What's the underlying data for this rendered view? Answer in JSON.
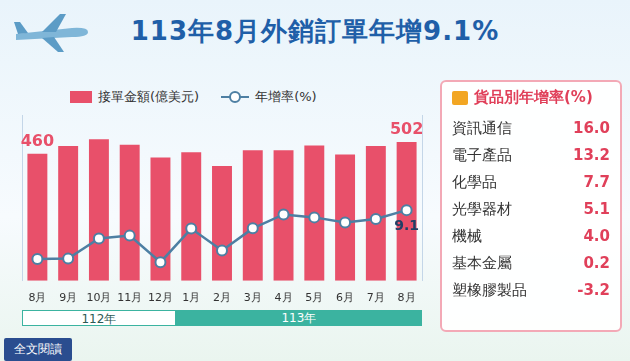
{
  "chart_data": {
    "type": "bar",
    "title": "113年8月外銷訂單年增9.1%",
    "categories": [
      "8月",
      "9月",
      "10月",
      "11月",
      "12月",
      "1月",
      "2月",
      "3月",
      "4月",
      "5月",
      "6月",
      "7月",
      "8月"
    ],
    "series": [
      {
        "name": "接單金額(億美元)",
        "type": "bar",
        "color": "#e8506a",
        "values": [
          460,
          488,
          512,
          492,
          446,
          465,
          415,
          472,
          472,
          490,
          457,
          488,
          502
        ],
        "value_labels": [
          "460",
          null,
          null,
          null,
          null,
          null,
          null,
          null,
          null,
          null,
          null,
          null,
          "502"
        ]
      },
      {
        "name": "年增率(%)",
        "type": "line",
        "axis": "y2",
        "color": "#4d7fa3",
        "marker": "circle",
        "line_style": "solid",
        "values": [
          -14.5,
          -14.3,
          -4.6,
          -3.2,
          -16.0,
          0.2,
          -10.4,
          0.3,
          7.0,
          5.6,
          3.1,
          4.8,
          9.1
        ],
        "value_labels": [
          null,
          null,
          null,
          null,
          null,
          null,
          null,
          null,
          null,
          null,
          null,
          null,
          "9.1"
        ]
      }
    ],
    "ylim": [
      0,
      600
    ],
    "y2lim": [
      -25,
      55
    ],
    "data_labels": true,
    "tick_labels": "x",
    "grid": false,
    "legend": "top"
  },
  "year_bands": [
    {
      "label": "112年",
      "count": 5
    },
    {
      "label": "113年",
      "count": 8
    }
  ],
  "panel": {
    "title": "貨品別年增率(%)",
    "rows": [
      {
        "label": "資訊通信",
        "value": "16.0"
      },
      {
        "label": "電子產品",
        "value": "13.2"
      },
      {
        "label": "化學品",
        "value": "7.7"
      },
      {
        "label": "光學器材",
        "value": "5.1"
      },
      {
        "label": "機械",
        "value": "4.0"
      },
      {
        "label": "基本金屬",
        "value": "0.2"
      },
      {
        "label": "塑橡膠製品",
        "value": "-3.2"
      }
    ]
  },
  "button": "全文閱讀"
}
